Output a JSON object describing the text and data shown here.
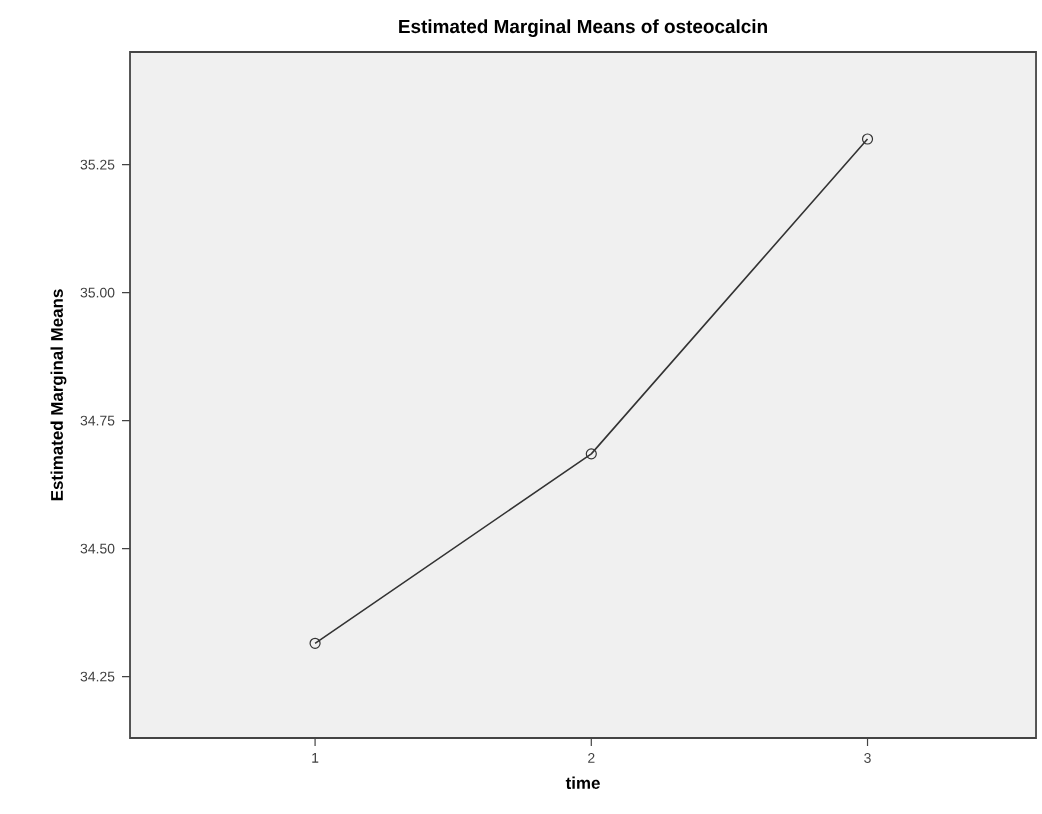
{
  "chart_data": {
    "type": "line",
    "title": "Estimated Marginal Means of osteocalcin",
    "xlabel": "time",
    "ylabel": "Estimated Marginal Means",
    "x": [
      1,
      2,
      3
    ],
    "values": [
      34.315,
      34.685,
      35.3
    ],
    "color": "#333333",
    "marker": "circle",
    "line_style": "solid",
    "xlim": [
      0.33,
      3.61
    ],
    "xticks": [
      1,
      2,
      3
    ],
    "ylim": [
      34.13,
      35.47
    ],
    "yticks": [
      {
        "value": 34.25,
        "label": "34.25"
      },
      {
        "value": 34.5,
        "label": "34.50"
      },
      {
        "value": 34.75,
        "label": "34.75"
      },
      {
        "value": 35.0,
        "label": "35.00"
      },
      {
        "value": 35.25,
        "label": "35.25"
      }
    ]
  }
}
